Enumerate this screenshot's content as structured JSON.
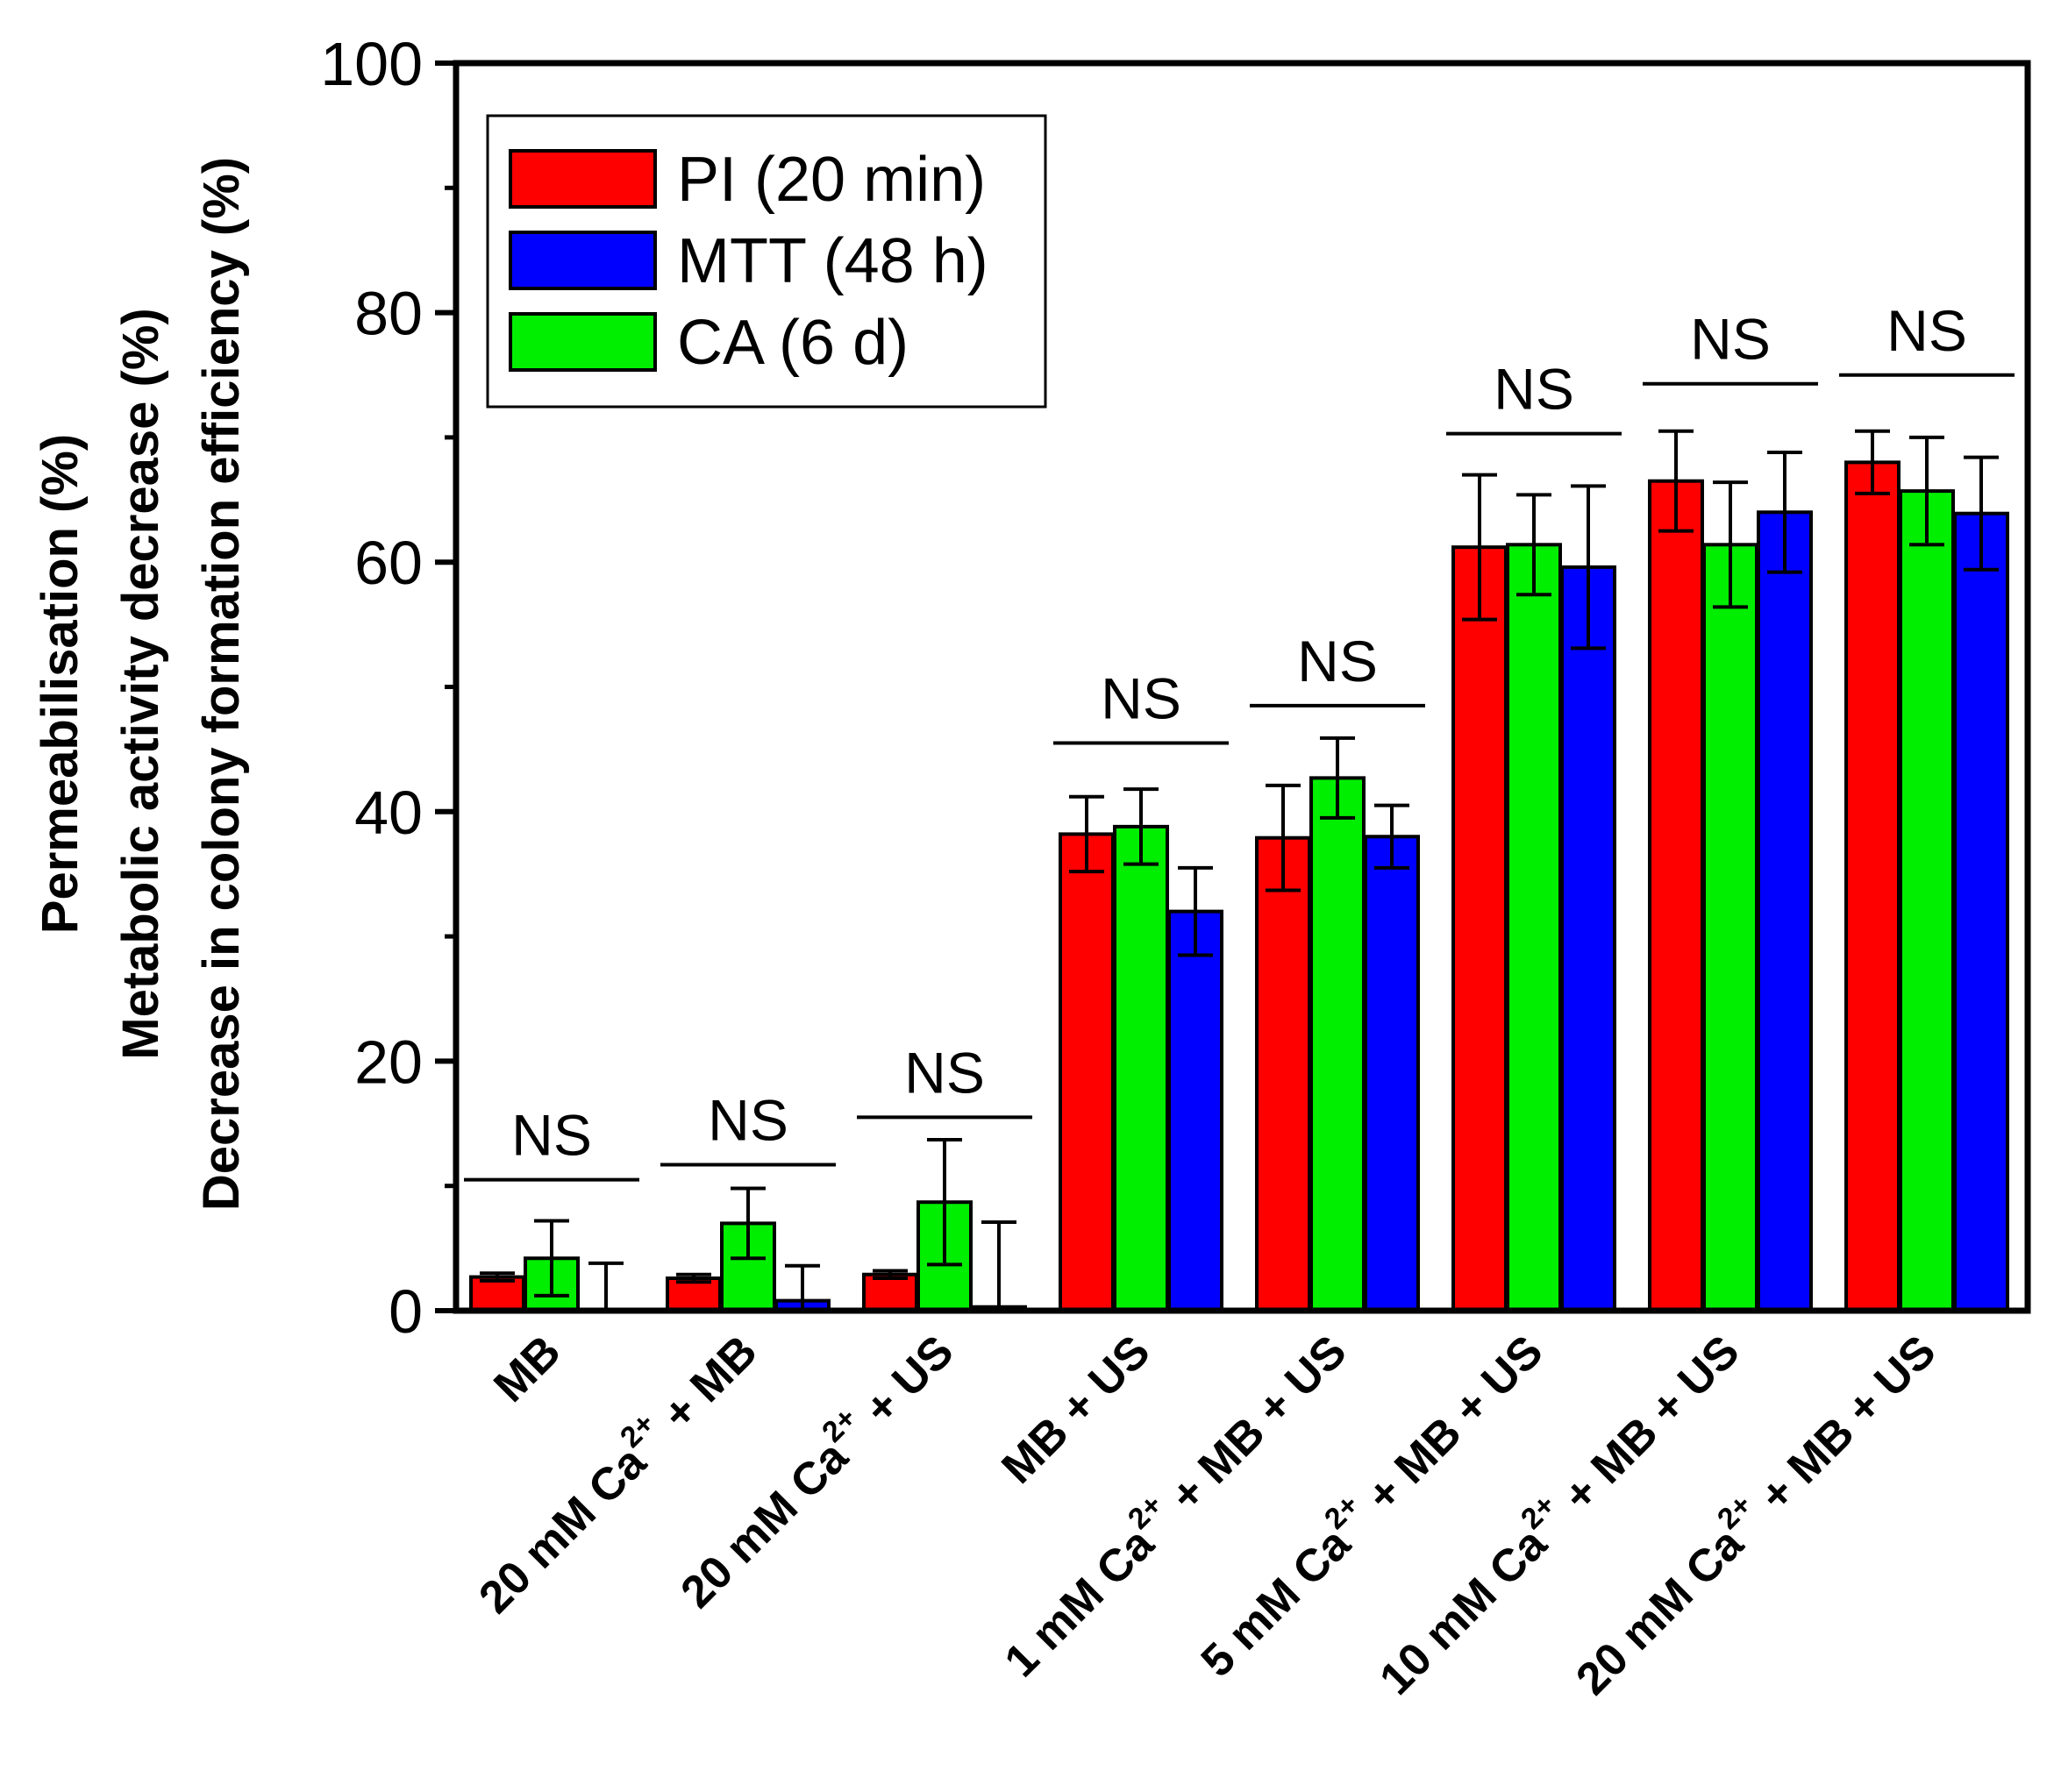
{
  "chart_data": {
    "type": "bar",
    "y_axis_labels": [
      "Permeabilisation (%)",
      "Metabolic activity decrease (%)",
      "Decrease in colony formation efficiency (%)"
    ],
    "ylim": [
      0,
      100
    ],
    "yticks": [
      "0",
      "20",
      "40",
      "60",
      "80",
      "100"
    ],
    "legend_position": "top-left",
    "categories": [
      {
        "pre": "MB",
        "sup": "",
        "post": ""
      },
      {
        "pre": "20 mM Ca",
        "sup": "2+",
        "post": " + MB"
      },
      {
        "pre": "20 mM Ca",
        "sup": "2+",
        "post": " + US"
      },
      {
        "pre": "MB + US",
        "sup": "",
        "post": ""
      },
      {
        "pre": "1 mM Ca",
        "sup": "2+",
        "post": " + MB + US"
      },
      {
        "pre": "5 mM Ca",
        "sup": "2+",
        "post": " + MB + US"
      },
      {
        "pre": "10 mM Ca",
        "sup": "2+",
        "post": " + MB + US"
      },
      {
        "pre": "20 mM Ca",
        "sup": "2+",
        "post": " + MB + US"
      }
    ],
    "series": [
      {
        "name": "PI (20 min)",
        "color": "#ff0000",
        "values": [
          2.7,
          2.6,
          2.9,
          38.2,
          37.9,
          61.2,
          66.5,
          68.0
        ],
        "errors": [
          0.3,
          0.3,
          0.3,
          3.0,
          4.2,
          5.8,
          4.0,
          2.5
        ]
      },
      {
        "name": "MTT (48 h)",
        "color": "#0000ff",
        "values": [
          0.0,
          0.8,
          0.3,
          32.0,
          38.0,
          59.6,
          64.0,
          63.9
        ],
        "errors": [
          3.8,
          2.8,
          6.8,
          3.5,
          2.5,
          6.5,
          4.8,
          4.5
        ]
      },
      {
        "name": "CA (6 d)",
        "color": "#00ee00",
        "values": [
          4.2,
          7.0,
          8.7,
          38.8,
          42.7,
          61.4,
          61.4,
          65.7
        ],
        "errors": [
          3.0,
          2.8,
          5.0,
          3.0,
          3.2,
          4.0,
          5.0,
          4.3
        ]
      }
    ],
    "annotations": [
      {
        "text": "NS",
        "y": 10.5
      },
      {
        "text": "NS",
        "y": 11.7
      },
      {
        "text": "NS",
        "y": 15.5
      },
      {
        "text": "NS",
        "y": 45.5
      },
      {
        "text": "NS",
        "y": 48.5
      },
      {
        "text": "NS",
        "y": 70.3
      },
      {
        "text": "NS",
        "y": 74.3
      },
      {
        "text": "NS",
        "y": 75.0
      }
    ]
  }
}
